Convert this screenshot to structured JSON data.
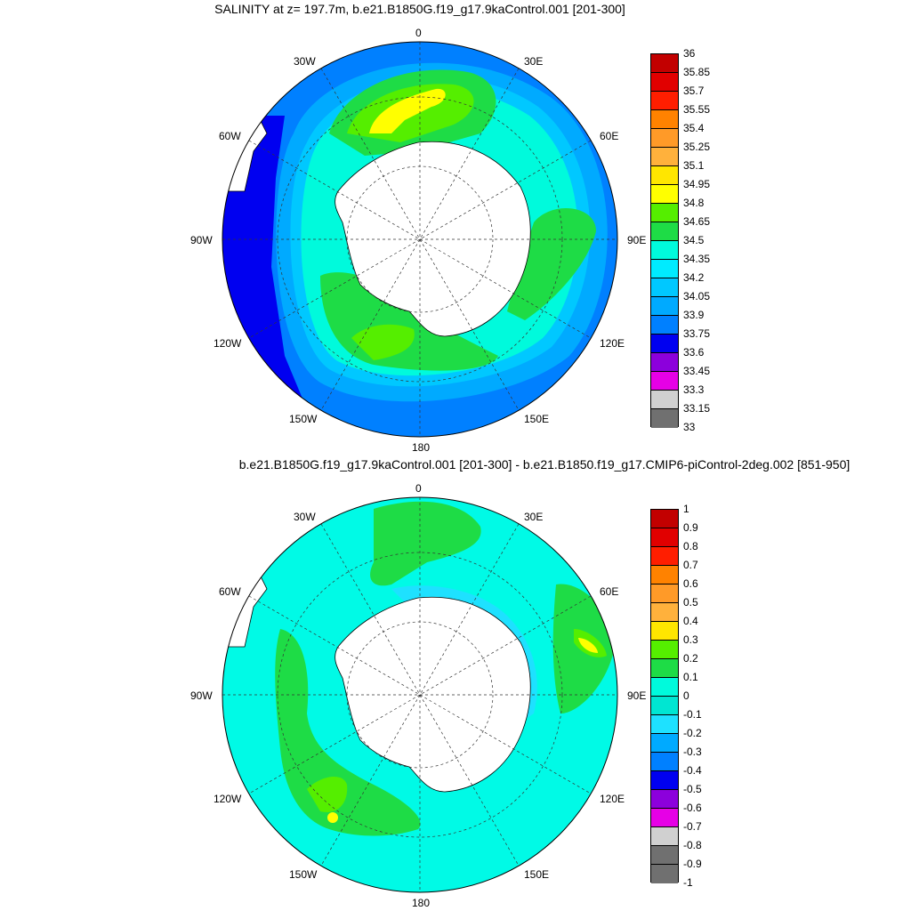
{
  "titles": {
    "top": "SALINITY at z= 197.7m, b.e21.B1850G.f19_g17.9kaControl.001 [201-300]",
    "bottom": "b.e21.B1850G.f19_g17.9kaControl.001 [201-300] - b.e21.B1850.f19_g17.CMIP6-piControl-2deg.002 [851-950]"
  },
  "lon_labels": {
    "lon_0": "0",
    "lon_30e": "30E",
    "lon_60e": "60E",
    "lon_90e": "90E",
    "lon_120e": "120E",
    "lon_150e": "150E",
    "lon_180": "180",
    "lon_150w": "150W",
    "lon_120w": "120W",
    "lon_90w": "90W",
    "lon_60w": "60W",
    "lon_30w": "30W"
  },
  "colorbar_top": {
    "labels": [
      "36",
      "35.85",
      "35.7",
      "35.55",
      "35.4",
      "35.25",
      "35.1",
      "34.95",
      "34.8",
      "34.65",
      "34.5",
      "34.35",
      "34.2",
      "34.05",
      "33.9",
      "33.75",
      "33.6",
      "33.45",
      "33.3",
      "33.15",
      "33"
    ],
    "colors": [
      "#c20000",
      "#e10000",
      "#ff1e00",
      "#ff8200",
      "#ff9a28",
      "#ffb13c",
      "#ffe600",
      "#ffff00",
      "#55ee00",
      "#1edc46",
      "#00fadc",
      "#00ebff",
      "#00c8ff",
      "#00aaff",
      "#0080ff",
      "#0000f0",
      "#8c00dc",
      "#e600e6",
      "#d0d0d0",
      "#707070"
    ]
  },
  "colorbar_bottom": {
    "labels": [
      "1",
      "0.9",
      "0.8",
      "0.7",
      "0.6",
      "0.5",
      "0.4",
      "0.3",
      "0.2",
      "0.1",
      "0",
      "-0.1",
      "-0.2",
      "-0.3",
      "-0.4",
      "-0.5",
      "-0.6",
      "-0.7",
      "-0.8",
      "-0.9",
      "-1"
    ],
    "colors": [
      "#c20000",
      "#e10000",
      "#ff1e00",
      "#ff8200",
      "#ff9a28",
      "#ffb13c",
      "#ffe600",
      "#55ee00",
      "#1edc46",
      "#00fadc",
      "#00e6d2",
      "#1ee1ff",
      "#00aaff",
      "#0080ff",
      "#0000f0",
      "#8c00dc",
      "#e600e6",
      "#d0d0d0",
      "#707070",
      "#707070"
    ]
  },
  "map_colors": {
    "deep_blue": "#0000f0",
    "blue": "#0080ff",
    "mid_blue": "#00aaff",
    "light_blue": "#00c8ff",
    "cyan": "#00fadc",
    "green": "#1edc46",
    "light_green": "#55ee00",
    "yellow": "#ffff00",
    "aqua": "#00fae6",
    "sky": "#1ee1ff",
    "land": "#ffffff"
  }
}
